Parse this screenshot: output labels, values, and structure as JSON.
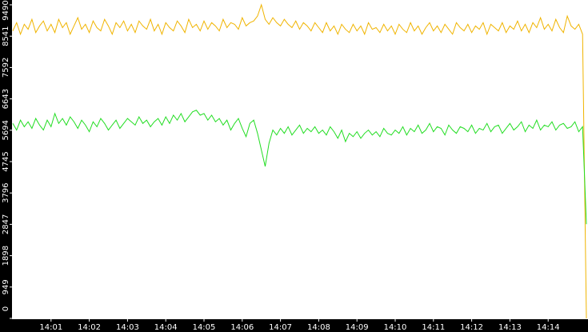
{
  "chart_data": {
    "type": "line",
    "ylim": [
      0,
      9490
    ],
    "yticks": [
      0,
      949,
      1898,
      2847,
      3796,
      4745,
      5694,
      6643,
      7592,
      8541,
      9490
    ],
    "xlim": [
      0,
      150
    ],
    "xticks": [
      {
        "value": 10,
        "label": "14:01"
      },
      {
        "value": 20,
        "label": "14:02"
      },
      {
        "value": 30,
        "label": "14:03"
      },
      {
        "value": 40,
        "label": "14:04"
      },
      {
        "value": 50,
        "label": "14:05"
      },
      {
        "value": 60,
        "label": "14:06"
      },
      {
        "value": 70,
        "label": "14:07"
      },
      {
        "value": 80,
        "label": "14:08"
      },
      {
        "value": 90,
        "label": "14:09"
      },
      {
        "value": 100,
        "label": "14:10"
      },
      {
        "value": 110,
        "label": "14:11"
      },
      {
        "value": 120,
        "label": "14:12"
      },
      {
        "value": 130,
        "label": "14:13"
      },
      {
        "value": 140,
        "label": "14:14"
      }
    ],
    "series": [
      {
        "color": "#f0b400",
        "values": [
          8700,
          8950,
          8600,
          8900,
          8750,
          9050,
          8650,
          8850,
          9000,
          8700,
          8900,
          8650,
          9050,
          8800,
          8950,
          8600,
          8850,
          9100,
          8750,
          8900,
          8650,
          9000,
          8800,
          8700,
          9050,
          8850,
          8600,
          8950,
          8800,
          9000,
          8700,
          8900,
          8650,
          9000,
          8850,
          8750,
          9050,
          8700,
          8900,
          8600,
          8950,
          8800,
          8700,
          9000,
          8850,
          8650,
          9050,
          8800,
          8900,
          8700,
          9000,
          8750,
          8950,
          8850,
          8700,
          9050,
          8800,
          8950,
          8900,
          8750,
          9100,
          8850,
          8950,
          9000,
          9150,
          9490,
          9050,
          8900,
          9100,
          8950,
          8850,
          9050,
          8900,
          8800,
          9000,
          8750,
          8950,
          8850,
          8700,
          8950,
          8800,
          8650,
          8950,
          8700,
          8850,
          8600,
          8900,
          8750,
          8650,
          8900,
          8700,
          8850,
          8600,
          8950,
          8750,
          8800,
          8650,
          8900,
          8700,
          8850,
          8600,
          8900,
          8750,
          8650,
          8950,
          8700,
          8850,
          8600,
          8800,
          8950,
          8700,
          8850,
          8650,
          8900,
          8750,
          8600,
          8950,
          8800,
          8700,
          8900,
          8650,
          8850,
          8750,
          8950,
          8600,
          8900,
          8800,
          8700,
          8950,
          8650,
          8850,
          8750,
          9000,
          8700,
          8900,
          8650,
          8950,
          8800,
          9100,
          8750,
          8900,
          8700,
          9050,
          8800,
          8650,
          9150,
          8850,
          8750,
          8900,
          8600,
          0
        ]
      },
      {
        "color": "#22dd22",
        "values": [
          5900,
          5700,
          6000,
          5800,
          5950,
          5750,
          6050,
          5850,
          5700,
          6000,
          5800,
          6200,
          5900,
          6050,
          5850,
          6100,
          5950,
          5750,
          6000,
          5850,
          5650,
          5950,
          5800,
          6050,
          5900,
          5700,
          5850,
          6000,
          5750,
          5900,
          6050,
          5950,
          5850,
          6100,
          5900,
          6000,
          5800,
          5950,
          6050,
          5850,
          6100,
          5900,
          6150,
          6000,
          6200,
          5950,
          6100,
          6250,
          6300,
          6150,
          6200,
          6000,
          6150,
          5950,
          6050,
          5850,
          6000,
          5700,
          5900,
          6050,
          5750,
          5500,
          5900,
          6000,
          5600,
          5100,
          4600,
          5300,
          5700,
          5550,
          5750,
          5600,
          5800,
          5550,
          5700,
          5850,
          5600,
          5750,
          5650,
          5800,
          5600,
          5700,
          5550,
          5800,
          5650,
          5450,
          5700,
          5350,
          5600,
          5500,
          5650,
          5450,
          5600,
          5700,
          5550,
          5650,
          5500,
          5750,
          5600,
          5550,
          5700,
          5600,
          5800,
          5550,
          5750,
          5650,
          5850,
          5600,
          5700,
          5900,
          5650,
          5800,
          5750,
          5550,
          5850,
          5700,
          5600,
          5800,
          5750,
          5650,
          5850,
          5600,
          5750,
          5700,
          5900,
          5650,
          5800,
          5850,
          5600,
          5750,
          5900,
          5700,
          5800,
          5950,
          5650,
          5850,
          5750,
          6000,
          5700,
          5850,
          5800,
          5950,
          5700,
          5850,
          5900,
          5750,
          5800,
          5950,
          5650,
          5800,
          2850
        ]
      }
    ]
  }
}
